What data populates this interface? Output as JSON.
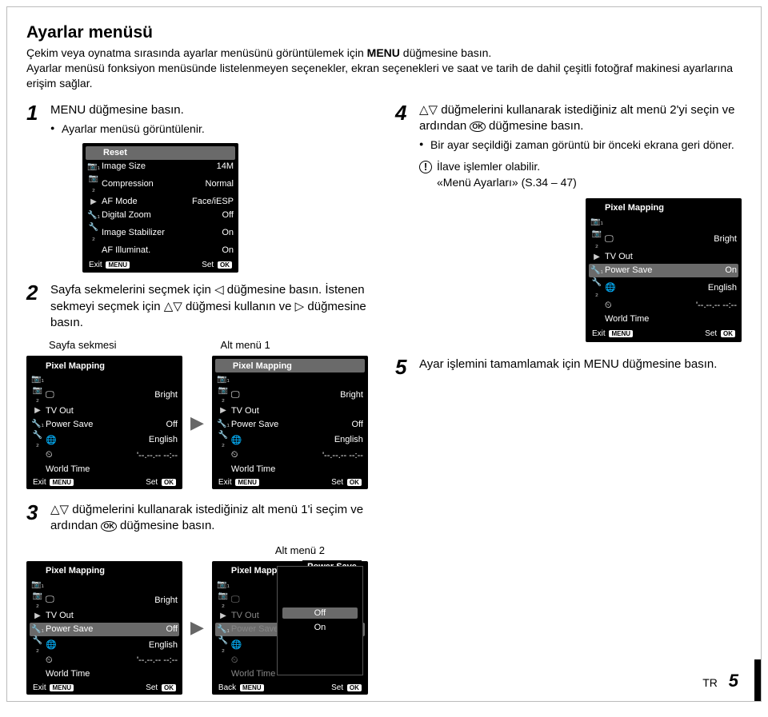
{
  "title": "Ayarlar menüsü",
  "intro_line1": "Çekim veya oynatma sırasında ayarlar menüsünü görüntülemek için ",
  "intro_kw1": "MENU",
  "intro_line1b": " düğmesine basın.",
  "intro_line2": "Ayarlar menüsü fonksiyon menüsünde listelenmeyen seçenekler, ekran seçenekleri ve saat ve tarih de dahil çeşitli fotoğraf makinesi ayarlarına erişim sağlar.",
  "step1": {
    "num": "1",
    "text_a": "MENU",
    "text_b": " düğmesine basın.",
    "bullet": "Ayarlar menüsü görüntülenir."
  },
  "menu1": {
    "header": "Reset",
    "rows": [
      {
        "icon": "📷₁",
        "label": "Image Size",
        "value": "14M"
      },
      {
        "icon": "📷₂",
        "label": "Compression",
        "value": "Normal"
      },
      {
        "icon": "▶",
        "label": "AF Mode",
        "value": "Face/iESP"
      },
      {
        "icon": "🔧₁",
        "label": "Digital Zoom",
        "value": "Off"
      },
      {
        "icon": "🔧₂",
        "label": "Image Stabilizer",
        "value": "On"
      },
      {
        "icon": "",
        "label": "AF Illuminat.",
        "value": "On"
      }
    ],
    "footer_left": "Exit",
    "footer_left_pill": "MENU",
    "footer_right": "Set",
    "footer_right_pill": "OK"
  },
  "step2": {
    "num": "2",
    "text": "Sayfa sekmelerini seçmek için ◁ düğmesine basın. İstenen sekmeyi seçmek için △▽ düğmesi kullanın ve ▷ düğmesine basın."
  },
  "label_sayfa": "Sayfa sekmesi",
  "label_alt1": "Alt menü 1",
  "pix_menu": {
    "title": "Pixel Mapping",
    "rows": [
      {
        "icon": "📷₁",
        "label": "",
        "value": ""
      },
      {
        "icon": "📷₂",
        "label": "🖵",
        "value": "Bright"
      },
      {
        "icon": "▶",
        "label": "TV Out",
        "value": ""
      },
      {
        "icon": "🔧₁",
        "label": "Power Save",
        "value": "Off"
      },
      {
        "icon": "🔧₂",
        "label": "🌐",
        "value": "English"
      },
      {
        "icon": "",
        "label": "⏲",
        "value": "'--.--.-- --:--"
      },
      {
        "icon": "",
        "label": "World Time",
        "value": ""
      }
    ],
    "footer_left": "Exit",
    "footer_left_pill": "MENU",
    "footer_right": "Set",
    "footer_right_pill": "OK"
  },
  "step3": {
    "num": "3",
    "text_a": "△▽ düğmelerini kullanarak istediğiniz alt menü 1'i seçim ve ardından ",
    "text_b": " düğmesine basın."
  },
  "label_alt2": "Alt menü 2",
  "pix_menu_hl": {
    "title": "Pixel Mapping",
    "rows": [
      {
        "icon": "📷₁",
        "label": "",
        "value": ""
      },
      {
        "icon": "📷₂",
        "label": "🖵",
        "value": "Bright"
      },
      {
        "icon": "▶",
        "label": "TV Out",
        "value": ""
      },
      {
        "icon": "🔧₁",
        "label": "Power Save",
        "value": "Off",
        "hl": true
      },
      {
        "icon": "🔧₂",
        "label": "🌐",
        "value": "English"
      },
      {
        "icon": "",
        "label": "⏲",
        "value": "'--.--.-- --:--"
      },
      {
        "icon": "",
        "label": "World Time",
        "value": ""
      }
    ]
  },
  "overlay": {
    "title": "Power Save",
    "options": [
      "Off",
      "On"
    ],
    "footer_left": "Back",
    "footer_left_pill": "MENU",
    "footer_right": "Set",
    "footer_right_pill": "OK"
  },
  "step4": {
    "num": "4",
    "text_a": "△▽ düğmelerini kullanarak istediğiniz alt menü 2'yi seçin ve ardından ",
    "text_b": " düğmesine basın.",
    "bullet": "Bir ayar seçildiği zaman görüntü bir önceki ekrana geri döner.",
    "warn1": "İlave işlemler olabilir.",
    "warn2": "«Menü Ayarları» (S.34 – 47)"
  },
  "pix_menu_on": {
    "title": "Pixel Mapping",
    "rows": [
      {
        "icon": "📷₁",
        "label": "",
        "value": ""
      },
      {
        "icon": "📷₂",
        "label": "🖵",
        "value": "Bright"
      },
      {
        "icon": "▶",
        "label": "TV Out",
        "value": ""
      },
      {
        "icon": "🔧₁",
        "label": "Power Save",
        "value": "On",
        "hl": true
      },
      {
        "icon": "🔧₂",
        "label": "🌐",
        "value": "English"
      },
      {
        "icon": "",
        "label": "⏲",
        "value": "'--.--.-- --:--"
      },
      {
        "icon": "",
        "label": "World Time",
        "value": ""
      }
    ]
  },
  "step5": {
    "num": "5",
    "text_a": "Ayar işlemini tamamlamak için ",
    "text_kw": "MENU",
    "text_b": " düğmesine basın."
  },
  "footer": {
    "lang": "TR",
    "page": "5"
  },
  "ok_label": "OK"
}
